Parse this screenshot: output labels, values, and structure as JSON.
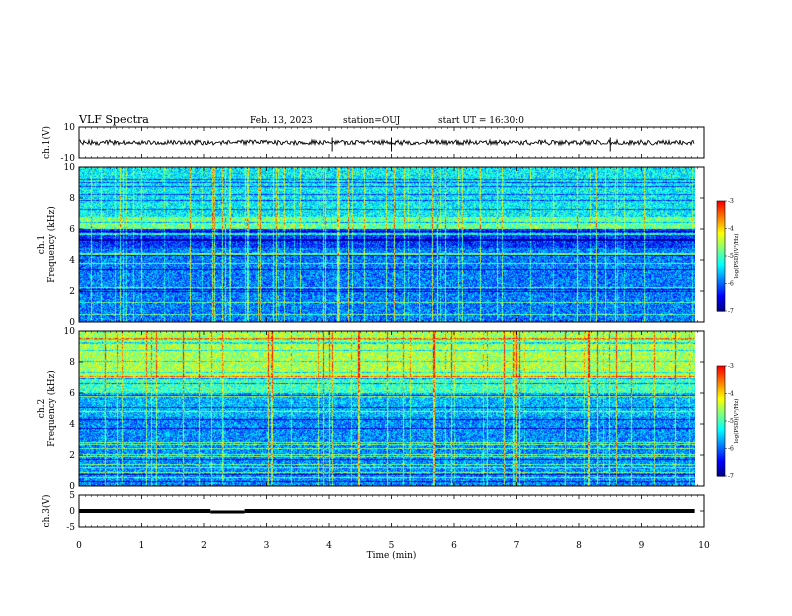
{
  "header": {
    "title": "VLF Spectra",
    "date": "Feb. 13, 2023",
    "station": "station=OUJ",
    "start": "start UT =  16:30:0"
  },
  "chart_data": [
    {
      "type": "line",
      "panel": "ch1-waveform",
      "ylabel": "ch.1(V)",
      "ylim": [
        -10,
        10
      ],
      "y_ticks": [
        "10",
        "-10"
      ],
      "xlim": [
        0,
        10
      ],
      "x_ticks": [
        "0",
        "1",
        "2",
        "3",
        "4",
        "5",
        "6",
        "7",
        "8",
        "9",
        "10"
      ],
      "approx_level": 0,
      "spikes_at_min": [
        4.05,
        5.0,
        8.5
      ],
      "data_end_min": 9.85
    },
    {
      "type": "heatmap",
      "panel": "ch1-spectrogram",
      "ylabel": "ch.1\nFrequency (kHz)",
      "ylim": [
        0,
        10
      ],
      "y_ticks": [
        "0",
        "2",
        "4",
        "6",
        "8",
        "10"
      ],
      "xlim": [
        0,
        10
      ],
      "x_ticks": [
        "0",
        "1",
        "2",
        "3",
        "4",
        "5",
        "6",
        "7",
        "8",
        "9",
        "10"
      ],
      "colorbar": {
        "label": "log(PSD)(V²/Hz)",
        "range": [
          -7,
          -3
        ],
        "ticks": [
          "-3",
          "-4",
          "-5",
          "-6",
          "-7"
        ]
      },
      "colormap": [
        "#00007f",
        "#0000ff",
        "#007fff",
        "#00ffff",
        "#7fff7f",
        "#ffff00",
        "#ff7f00",
        "#ff0000",
        "#ffffff"
      ],
      "data_end_min": 9.85
    },
    {
      "type": "heatmap",
      "panel": "ch2-spectrogram",
      "ylabel": "ch.2\nFrequency (kHz)",
      "ylim": [
        0,
        10
      ],
      "y_ticks": [
        "0",
        "2",
        "4",
        "6",
        "8",
        "10"
      ],
      "xlim": [
        0,
        10
      ],
      "x_ticks": [
        "0",
        "1",
        "2",
        "3",
        "4",
        "5",
        "6",
        "7",
        "8",
        "9",
        "10"
      ],
      "colorbar": {
        "label": "log(PSD)(V²/Hz)",
        "range": [
          -7,
          -3
        ],
        "ticks": [
          "-3",
          "-4",
          "-5",
          "-6",
          "-7"
        ]
      },
      "colormap": [
        "#00007f",
        "#0000ff",
        "#007fff",
        "#00ffff",
        "#7fff7f",
        "#ffff00",
        "#ff7f00",
        "#ff0000",
        "#ffffff"
      ],
      "data_end_min": 9.85
    },
    {
      "type": "line",
      "panel": "ch3-waveform",
      "ylabel": "ch.3(V)",
      "ylim": [
        -5,
        5
      ],
      "y_ticks": [
        "5",
        "0",
        "-5"
      ],
      "xlim": [
        0,
        10
      ],
      "x_ticks": [
        "0",
        "1",
        "2",
        "3",
        "4",
        "5",
        "6",
        "7",
        "8",
        "9",
        "10"
      ],
      "xlabel": "Time (min)",
      "level": 0,
      "gap_min": [
        2.1,
        2.65
      ],
      "data_end_min": 9.85
    }
  ]
}
